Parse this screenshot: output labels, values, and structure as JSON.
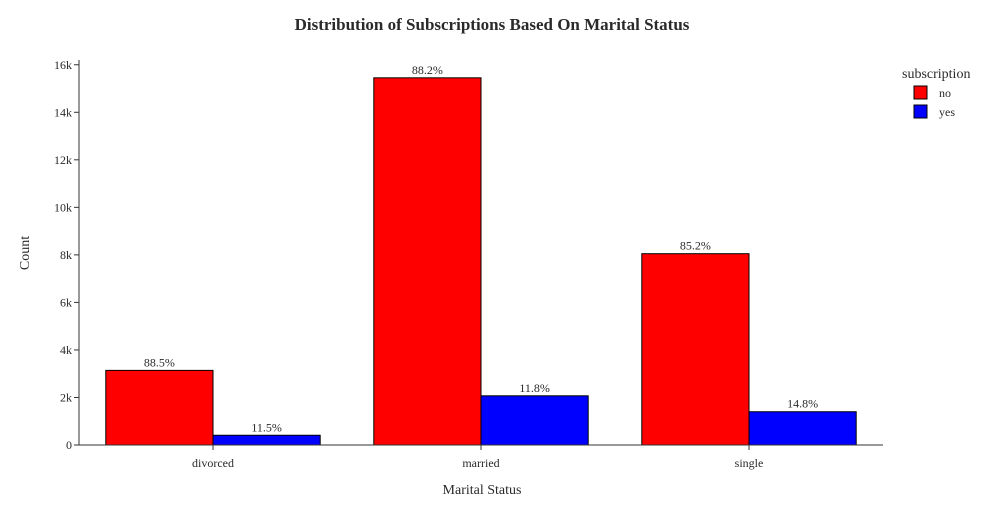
{
  "chart_data": {
    "type": "bar",
    "title": "Distribution of Subscriptions Based On Marital Status",
    "xlabel": "Marital Status",
    "ylabel": "Count",
    "categories": [
      "divorced",
      "married",
      "single"
    ],
    "ylim": [
      0,
      16200
    ],
    "yticks": [
      0,
      2000,
      4000,
      6000,
      8000,
      10000,
      12000,
      14000,
      16000
    ],
    "ytick_labels": [
      "0",
      "2k",
      "4k",
      "6k",
      "8k",
      "10k",
      "12k",
      "14k",
      "16k"
    ],
    "grid": false,
    "legend": {
      "title": "subscription",
      "placement": "top-right"
    },
    "series": [
      {
        "name": "no",
        "color": "#ff0000",
        "values": [
          3140,
          15450,
          8050
        ],
        "labels": [
          "88.5%",
          "88.2%",
          "85.2%"
        ]
      },
      {
        "name": "yes",
        "color": "#0000ff",
        "values": [
          410,
          2070,
          1400
        ],
        "labels": [
          "11.5%",
          "11.8%",
          "14.8%"
        ]
      }
    ]
  }
}
